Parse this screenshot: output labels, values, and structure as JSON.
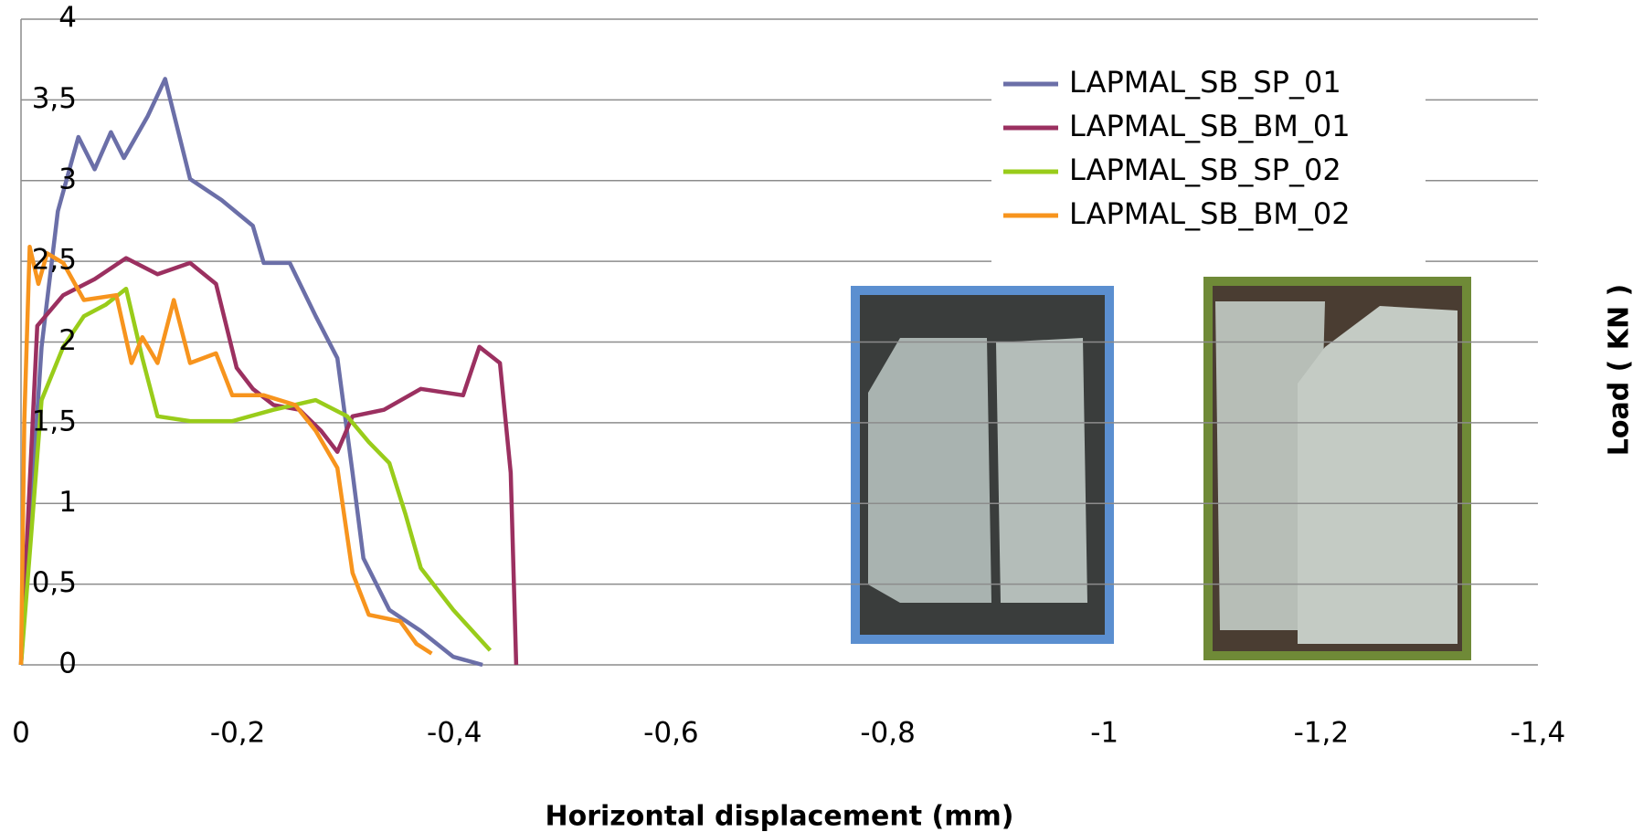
{
  "chart_data": {
    "type": "line",
    "xlabel": "Horizontal displacement (mm)",
    "ylabel": "Load ( KN )",
    "xlim": [
      0,
      -1.4
    ],
    "ylim": [
      0,
      4
    ],
    "xticks": [
      0,
      {
        "value": -0.2,
        "label": "-0,2"
      },
      {
        "value": -0.4,
        "label": "-0,4"
      },
      {
        "value": -0.6,
        "label": "-0,6"
      },
      {
        "value": -0.8,
        "label": "-0,8"
      },
      -1,
      {
        "value": -1.2,
        "label": "-1,2"
      },
      {
        "value": -1.4,
        "label": "-1,4"
      }
    ],
    "yticks": [
      0,
      {
        "value": 0.5,
        "label": "0,5"
      },
      1,
      {
        "value": 1.5,
        "label": "1,5"
      },
      2,
      {
        "value": 2.5,
        "label": "2,5"
      },
      3,
      {
        "value": 3.5,
        "label": "3,5"
      },
      4
    ],
    "grid": true,
    "legend": "top-right",
    "series": [
      {
        "name": "LAPMAL_SB_SP_01",
        "color": "#6b6fa8",
        "x": [
          0,
          -0.01,
          -0.019,
          -0.034,
          -0.053,
          -0.068,
          -0.083,
          -0.095,
          -0.117,
          -0.133,
          -0.156,
          -0.185,
          -0.214,
          -0.224,
          -0.248,
          -0.272,
          -0.292,
          -0.306,
          -0.316,
          -0.34,
          -0.369,
          -0.399,
          -0.426
        ],
        "values": [
          0,
          1.05,
          1.97,
          2.81,
          3.27,
          3.07,
          3.3,
          3.14,
          3.4,
          3.63,
          3.01,
          2.88,
          2.72,
          2.49,
          2.49,
          2.16,
          1.9,
          1.19,
          0.66,
          0.34,
          0.21,
          0.05,
          0
        ]
      },
      {
        "name": "LAPMAL_SB_BM_01",
        "color": "#9b3060",
        "x": [
          0,
          -0.015,
          -0.039,
          -0.068,
          -0.097,
          -0.126,
          -0.156,
          -0.18,
          -0.199,
          -0.214,
          -0.233,
          -0.257,
          -0.277,
          -0.292,
          -0.306,
          -0.335,
          -0.369,
          -0.408,
          -0.423,
          -0.442,
          -0.452,
          -0.457
        ],
        "values": [
          0,
          2.1,
          2.29,
          2.39,
          2.52,
          2.42,
          2.49,
          2.36,
          1.84,
          1.71,
          1.61,
          1.58,
          1.45,
          1.32,
          1.54,
          1.58,
          1.71,
          1.67,
          1.97,
          1.87,
          1.19,
          0
        ]
      },
      {
        "name": "LAPMAL_SB_SP_02",
        "color": "#99cc1a",
        "x": [
          0,
          -0.01,
          -0.019,
          -0.039,
          -0.058,
          -0.078,
          -0.097,
          -0.112,
          -0.126,
          -0.156,
          -0.195,
          -0.233,
          -0.272,
          -0.301,
          -0.321,
          -0.34,
          -0.355,
          -0.369,
          -0.399,
          -0.433
        ],
        "values": [
          0,
          0.86,
          1.64,
          1.97,
          2.16,
          2.23,
          2.33,
          1.9,
          1.54,
          1.51,
          1.51,
          1.58,
          1.64,
          1.54,
          1.38,
          1.25,
          0.93,
          0.6,
          0.34,
          0.09
        ]
      },
      {
        "name": "LAPMAL_SB_BM_02",
        "color": "#f7941d",
        "x": [
          0,
          -0.003,
          -0.008,
          -0.016,
          -0.024,
          -0.039,
          -0.058,
          -0.088,
          -0.102,
          -0.112,
          -0.126,
          -0.141,
          -0.156,
          -0.18,
          -0.195,
          -0.224,
          -0.253,
          -0.272,
          -0.292,
          -0.306,
          -0.321,
          -0.35,
          -0.365,
          -0.379
        ],
        "values": [
          0,
          1.51,
          2.59,
          2.36,
          2.55,
          2.49,
          2.26,
          2.29,
          1.87,
          2.03,
          1.87,
          2.26,
          1.87,
          1.93,
          1.67,
          1.67,
          1.61,
          1.45,
          1.22,
          0.57,
          0.31,
          0.27,
          0.13,
          0.07
        ]
      }
    ]
  }
}
